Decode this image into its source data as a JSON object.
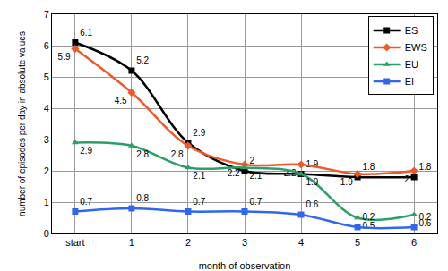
{
  "chart_data": {
    "type": "line",
    "x_label": "month of observation",
    "y_label": "number of episodes per day in absolute values",
    "categories": [
      "start",
      "1",
      "2",
      "3",
      "4",
      "5",
      "6"
    ],
    "series": [
      {
        "name": "ES",
        "color": "#000000",
        "marker": "square",
        "values": [
          6.1,
          5.2,
          2.9,
          2,
          1.9,
          1.8,
          1.8
        ]
      },
      {
        "name": "EWS",
        "color": "#f0582a",
        "marker": "diamond",
        "values": [
          5.9,
          4.5,
          2.8,
          2.2,
          2.2,
          1.9,
          2
        ]
      },
      {
        "name": "EU",
        "color": "#2e9e68",
        "marker": "triangle-up",
        "values": [
          2.9,
          2.8,
          2.1,
          2.1,
          1.9,
          0.5,
          0.6
        ]
      },
      {
        "name": "EI",
        "color": "#3366ee",
        "marker": "square",
        "values": [
          0.7,
          0.8,
          0.7,
          0.7,
          0.6,
          0.2,
          0.2
        ]
      }
    ],
    "ylim": [
      0,
      7
    ],
    "yticks": [
      0,
      1,
      2,
      3,
      4,
      5,
      6,
      7
    ],
    "grid": true,
    "legend": "top-right",
    "data_labels": true
  }
}
